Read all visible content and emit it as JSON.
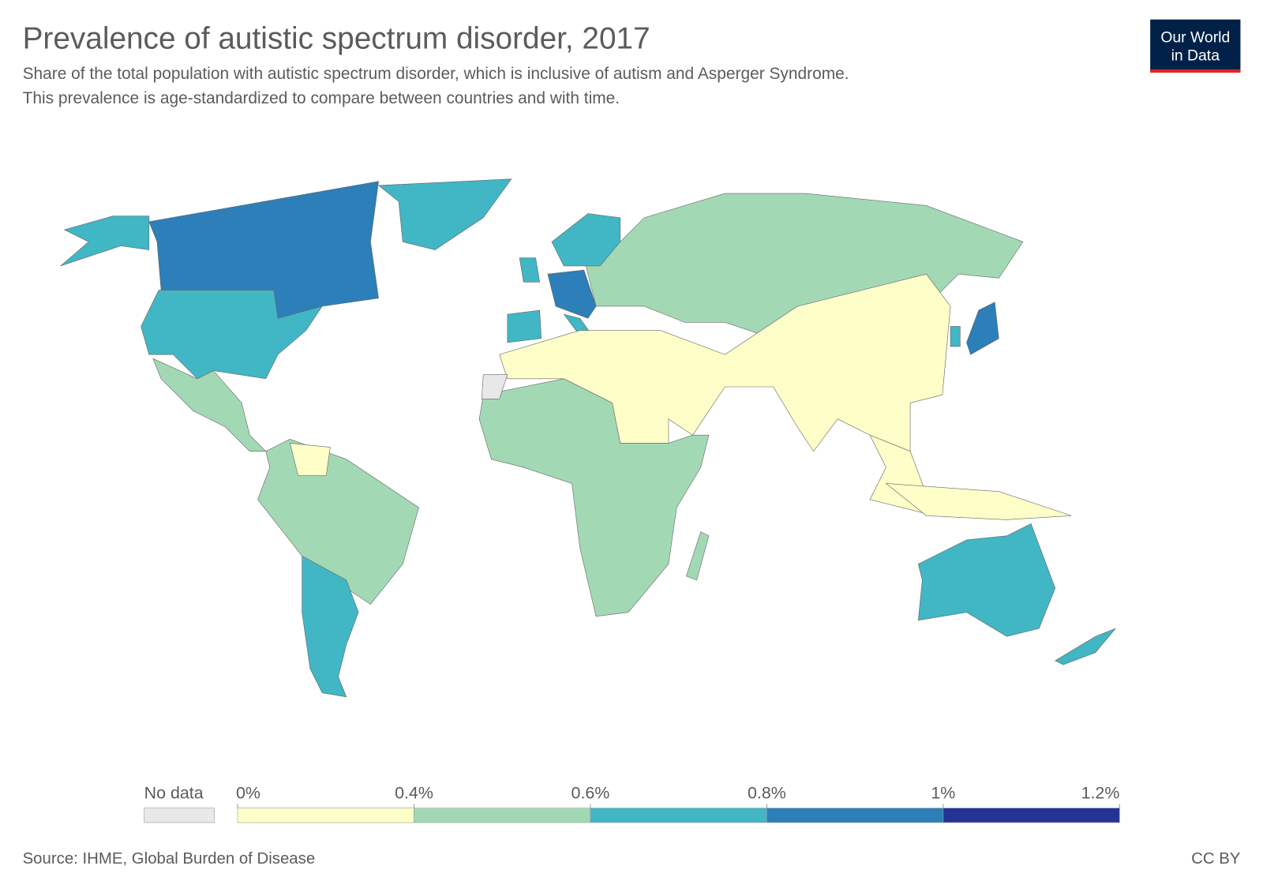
{
  "chart_data": {
    "type": "choropleth",
    "title": "Prevalence of autistic spectrum disorder, 2017",
    "subtitle": [
      "Share of the total population with autistic spectrum disorder, which is inclusive of autism and Asperger Syndrome.",
      "This prevalence is age-standardized to compare between countries and with time."
    ],
    "logo": [
      "Our World",
      "in Data"
    ],
    "legend": {
      "no_data": "No data",
      "no_data_color": "#e8e8e8",
      "ticks": [
        {
          "value": 0,
          "label": "0%"
        },
        {
          "value": 0.4,
          "label": "0.4%"
        },
        {
          "value": 0.6,
          "label": "0.6%"
        },
        {
          "value": 0.8,
          "label": "0.8%"
        },
        {
          "value": 1,
          "label": "1%"
        },
        {
          "value": 1.2,
          "label": "1.2%"
        }
      ],
      "colors": [
        "#fefec8",
        "#a2d9b4",
        "#41b6c4",
        "#2c7fb8",
        "#253494"
      ]
    },
    "source": "Source: IHME, Global Burden of Disease",
    "license": "CC BY"
  }
}
